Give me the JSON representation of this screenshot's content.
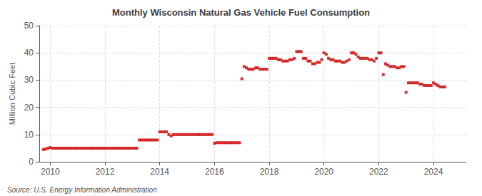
{
  "chart_data": {
    "type": "scatter",
    "title": "Monthly Wisconsin Natural Gas Vehicle Fuel Consumption",
    "ylabel": "Million Cubic Feet",
    "annotations": [
      "Source: U.S. Energy Information Administration"
    ],
    "color": "#cc0000",
    "marker": "square",
    "grid": true,
    "xlim": [
      2009.6,
      2025.2
    ],
    "xticks": [
      2010,
      2012,
      2014,
      2016,
      2018,
      2020,
      2022,
      2024
    ],
    "ylim": [
      0,
      50
    ],
    "yticks": [
      0,
      10,
      20,
      30,
      40,
      50
    ],
    "x": [
      2009.75,
      2009.833333,
      2009.916667,
      2010,
      2010.083333,
      2010.166667,
      2010.25,
      2010.333333,
      2010.416667,
      2010.5,
      2010.583333,
      2010.666667,
      2010.75,
      2010.833333,
      2010.916667,
      2011,
      2011.083333,
      2011.166667,
      2011.25,
      2011.333333,
      2011.416667,
      2011.5,
      2011.583333,
      2011.666667,
      2011.75,
      2011.833333,
      2011.916667,
      2012,
      2012.083333,
      2012.166667,
      2012.25,
      2012.333333,
      2012.416667,
      2012.5,
      2012.583333,
      2012.666667,
      2012.75,
      2012.833333,
      2012.916667,
      2013,
      2013.083333,
      2013.166667,
      2013.25,
      2013.333333,
      2013.416667,
      2013.5,
      2013.583333,
      2013.666667,
      2013.75,
      2013.833333,
      2013.916667,
      2014,
      2014.083333,
      2014.166667,
      2014.25,
      2014.333333,
      2014.416667,
      2014.5,
      2014.583333,
      2014.666667,
      2014.75,
      2014.833333,
      2014.916667,
      2015,
      2015.083333,
      2015.166667,
      2015.25,
      2015.333333,
      2015.416667,
      2015.5,
      2015.583333,
      2015.666667,
      2015.75,
      2015.833333,
      2015.916667,
      2016,
      2016.083333,
      2016.166667,
      2016.25,
      2016.333333,
      2016.416667,
      2016.5,
      2016.583333,
      2016.666667,
      2016.75,
      2016.833333,
      2016.916667,
      2017,
      2017.083333,
      2017.166667,
      2017.25,
      2017.333333,
      2017.416667,
      2017.5,
      2017.583333,
      2017.666667,
      2017.75,
      2017.833333,
      2017.916667,
      2018,
      2018.083333,
      2018.166667,
      2018.25,
      2018.333333,
      2018.416667,
      2018.5,
      2018.583333,
      2018.666667,
      2018.75,
      2018.833333,
      2018.916667,
      2019,
      2019.083333,
      2019.166667,
      2019.25,
      2019.333333,
      2019.416667,
      2019.5,
      2019.583333,
      2019.666667,
      2019.75,
      2019.833333,
      2019.916667,
      2020,
      2020.083333,
      2020.166667,
      2020.25,
      2020.333333,
      2020.416667,
      2020.5,
      2020.583333,
      2020.666667,
      2020.75,
      2020.833333,
      2020.916667,
      2021,
      2021.083333,
      2021.166667,
      2021.25,
      2021.333333,
      2021.416667,
      2021.5,
      2021.583333,
      2021.666667,
      2021.75,
      2021.833333,
      2021.916667,
      2022,
      2022.083333,
      2022.166667,
      2022.25,
      2022.333333,
      2022.416667,
      2022.5,
      2022.583333,
      2022.666667,
      2022.75,
      2022.833333,
      2022.916667,
      2023,
      2023.083333,
      2023.166667,
      2023.25,
      2023.333333,
      2023.416667,
      2023.5,
      2023.583333,
      2023.666667,
      2023.75,
      2023.833333,
      2023.916667,
      2024,
      2024.083333,
      2024.166667,
      2024.25,
      2024.333333,
      2024.416667
    ],
    "values": [
      4.5,
      4.7,
      5.0,
      5.2,
      5.0,
      5.0,
      5.0,
      5.0,
      5.0,
      5.0,
      5.0,
      5.0,
      5.0,
      5.0,
      5.0,
      5.0,
      5.0,
      5.0,
      5.0,
      5.0,
      5.0,
      5.0,
      5.0,
      5.0,
      5.0,
      5.0,
      5.0,
      5.0,
      5.0,
      5.0,
      5.0,
      5.0,
      5.0,
      5.0,
      5.0,
      5.0,
      5.0,
      5.0,
      5.0,
      5.0,
      5.0,
      5.0,
      8.0,
      8.0,
      8.0,
      8.0,
      8.0,
      8.0,
      8.0,
      8.0,
      8.0,
      11.0,
      11.0,
      11.0,
      11.0,
      10.0,
      9.5,
      10.0,
      10.0,
      10.0,
      10.0,
      10.0,
      10.0,
      10.0,
      10.0,
      10.0,
      10.0,
      10.0,
      10.0,
      10.0,
      10.0,
      10.0,
      10.0,
      10.0,
      10.0,
      6.8,
      7.0,
      7.0,
      7.0,
      7.0,
      7.0,
      7.0,
      7.0,
      7.0,
      7.0,
      7.0,
      7.0,
      30.5,
      35.0,
      34.5,
      34.0,
      34.0,
      34.0,
      34.5,
      34.5,
      34.0,
      34.0,
      34.0,
      34.0,
      38.0,
      38.0,
      38.0,
      38.0,
      37.5,
      37.5,
      37.0,
      37.0,
      37.0,
      37.5,
      37.5,
      38.0,
      40.5,
      40.5,
      40.5,
      38.0,
      38.0,
      37.0,
      37.0,
      36.0,
      36.0,
      36.5,
      36.5,
      37.5,
      40.0,
      39.5,
      38.0,
      37.5,
      37.5,
      37.0,
      37.0,
      37.0,
      36.5,
      36.5,
      37.0,
      37.5,
      40.0,
      40.0,
      39.5,
      38.5,
      38.0,
      38.0,
      38.0,
      38.0,
      37.5,
      37.5,
      37.0,
      38.0,
      40.0,
      40.0,
      32.0,
      36.0,
      35.5,
      35.0,
      35.0,
      35.0,
      34.5,
      34.5,
      35.0,
      35.0,
      25.5,
      29.0,
      29.0,
      29.0,
      29.0,
      29.0,
      28.5,
      28.5,
      28.0,
      28.0,
      28.0,
      28.0,
      29.0,
      28.5,
      28.0,
      27.5,
      27.5,
      27.5
    ]
  }
}
